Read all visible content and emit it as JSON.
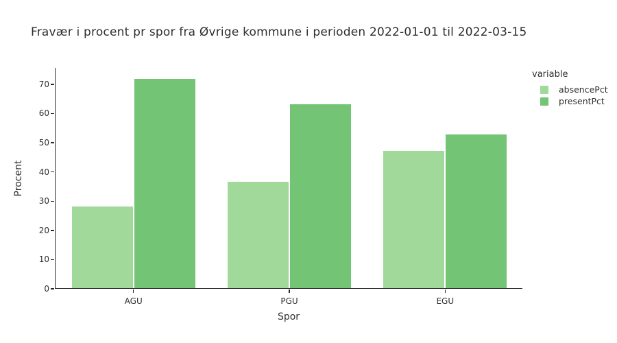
{
  "chart_data": {
    "type": "bar",
    "title": "Fravær i procent pr spor fra Øvrige kommune i perioden 2022-01-01 til 2022-03-15",
    "xlabel": "Spor",
    "ylabel": "Procent",
    "categories": [
      "AGU",
      "PGU",
      "EGU"
    ],
    "series": [
      {
        "name": "absencePct",
        "color": "#a1d99b",
        "values": [
          28.0,
          36.5,
          47.0
        ]
      },
      {
        "name": "presentPct",
        "color": "#74c476",
        "values": [
          71.7,
          63.0,
          52.6
        ]
      }
    ],
    "legend_title": "variable",
    "legend_position": "right",
    "ylim": [
      0,
      75.6
    ],
    "yticks": [
      0,
      10,
      20,
      30,
      40,
      50,
      60,
      70
    ],
    "grid": false,
    "bargroup_fraction": 0.8
  },
  "colors": {
    "axis": "#2a2a2a",
    "text": "#2f2f2f",
    "background": "#ffffff"
  }
}
